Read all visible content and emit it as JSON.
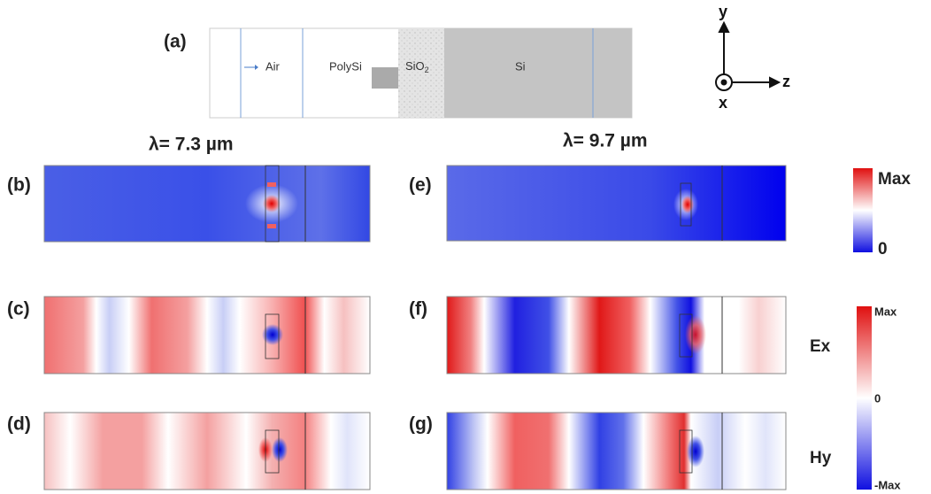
{
  "panel_a": {
    "label": "(a)",
    "air": "Air",
    "polysi": "PolySi",
    "sio2": {
      "text": "SiO",
      "subscript": "2"
    },
    "si": "Si"
  },
  "axes": {
    "y": "y",
    "z": "z",
    "x": "x"
  },
  "wavelengths": [
    "λ= 7.3 µm",
    "λ= 9.7 µm"
  ],
  "panels": [
    "(b)",
    "(c)",
    "(d)",
    "(e)",
    "(f)",
    "(g)"
  ],
  "colorbar_intensity": {
    "max": "Max",
    "min": "0"
  },
  "colorbar_field": {
    "max": "Max",
    "zero": "0",
    "min": "-Max"
  },
  "components": [
    "Ex",
    "Hy"
  ]
}
